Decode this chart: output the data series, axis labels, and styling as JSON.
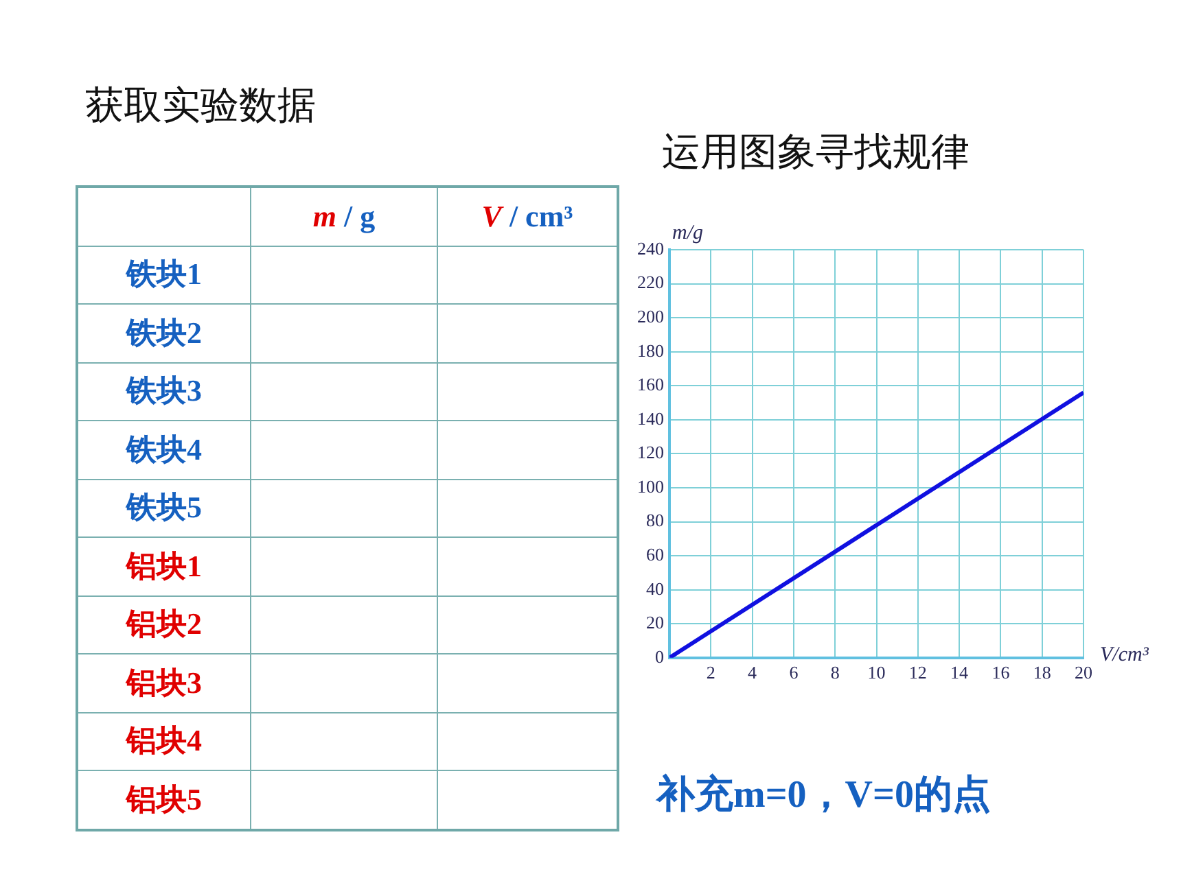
{
  "chart_data": [
    {
      "type": "other",
      "title": "获取实验数据",
      "annotations": [
        "m / g",
        "V / cm³",
        "铁块1",
        "铁块2",
        "铁块3",
        "铁块4",
        "铁块5",
        "铝块1",
        "铝块2",
        "铝块3",
        "铝块4",
        "铝块5"
      ]
    },
    {
      "type": "line",
      "title": "运用图象寻找规律",
      "xlabel": "V/cm³",
      "ylabel": "m/g",
      "x": [
        0,
        20
      ],
      "series": [
        {
          "color": "#1010e0",
          "values": [
            0,
            156
          ]
        }
      ],
      "xlim": [
        0,
        20
      ],
      "xticks": [
        {
          "value": 0,
          "label": null
        },
        2,
        4,
        6,
        8,
        10,
        12,
        14,
        16,
        18,
        20
      ],
      "ylim": [
        0,
        240
      ],
      "yticks": [
        0,
        20,
        40,
        60,
        80,
        100,
        120,
        140,
        160,
        180,
        200,
        220,
        240
      ],
      "grid": true,
      "marker": "none",
      "line_style": "solid",
      "annotations": [
        "补充m=0，V=0的点"
      ]
    }
  ]
}
